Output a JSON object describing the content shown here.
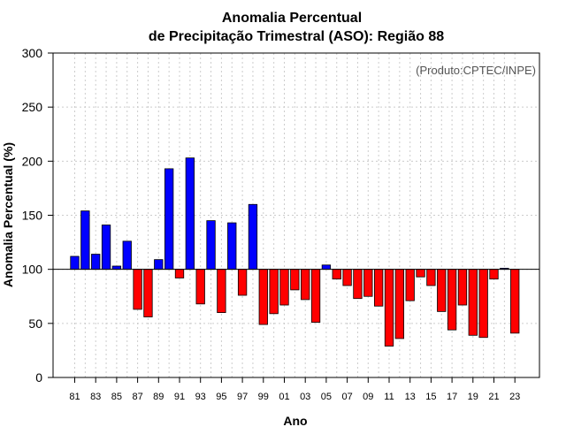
{
  "chart_data": {
    "type": "bar",
    "title_line1": "Anomalia Percentual",
    "title_line2": "de Precipitação Trimestral (ASO): Região 88",
    "xlabel": "Ano",
    "ylabel": "Anomalia Percentual (%)",
    "credit": "(Produto:CPTEC/INPE)",
    "baseline": 100,
    "ylim": [
      0,
      300
    ],
    "yticks": [
      0,
      50,
      100,
      150,
      200,
      250,
      300
    ],
    "years": [
      "81",
      "82",
      "83",
      "84",
      "85",
      "86",
      "87",
      "88",
      "89",
      "90",
      "91",
      "92",
      "93",
      "94",
      "95",
      "96",
      "97",
      "98",
      "99",
      "00",
      "01",
      "02",
      "03",
      "04",
      "05",
      "06",
      "07",
      "08",
      "09",
      "10",
      "11",
      "12",
      "13",
      "14",
      "15",
      "16",
      "17",
      "18",
      "19",
      "20",
      "21",
      "22",
      "23"
    ],
    "x_tick_labels": [
      "81",
      "83",
      "85",
      "87",
      "89",
      "91",
      "93",
      "95",
      "97",
      "99",
      "01",
      "03",
      "05",
      "07",
      "09",
      "11",
      "13",
      "15",
      "17",
      "19",
      "21",
      "23"
    ],
    "values": [
      112,
      154,
      114,
      141,
      103,
      126,
      63,
      56,
      109,
      193,
      92,
      203,
      68,
      145,
      60,
      143,
      76,
      160,
      49,
      59,
      67,
      81,
      72,
      51,
      104,
      91,
      85,
      73,
      75,
      66,
      29,
      36,
      71,
      93,
      85,
      61,
      44,
      67,
      39,
      37,
      91,
      101,
      41
    ],
    "colors": {
      "above": "#0000ff",
      "below": "#ff0000",
      "outline": "#000000"
    }
  }
}
